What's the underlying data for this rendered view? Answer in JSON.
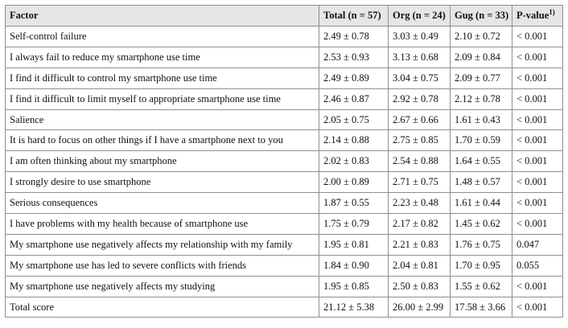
{
  "header": {
    "factor": "Factor",
    "total": "Total (n = 57)",
    "org": "Org (n = 24)",
    "gug": "Gug (n = 33)",
    "pvalue": "P-value",
    "pvalue_sup": "1)"
  },
  "rows": [
    {
      "factor": "Self-control failure",
      "total": "2.49 ± 0.78",
      "org": "3.03 ± 0.49",
      "gug": "2.10 ± 0.72",
      "p": "< 0.001"
    },
    {
      "factor": "I always fail to reduce my smartphone use time",
      "total": "2.53 ± 0.93",
      "org": "3.13 ± 0.68",
      "gug": "2.09 ± 0.84",
      "p": "< 0.001"
    },
    {
      "factor": "I find it difficult to control my smartphone use time",
      "total": "2.49 ± 0.89",
      "org": "3.04 ± 0.75",
      "gug": "2.09 ± 0.77",
      "p": "< 0.001"
    },
    {
      "factor": "I find it difficult to limit myself to appropriate smartphone use time",
      "total": "2.46 ± 0.87",
      "org": "2.92 ± 0.78",
      "gug": "2.12 ± 0.78",
      "p": "< 0.001"
    },
    {
      "factor": "Salience",
      "total": "2.05 ± 0.75",
      "org": "2.67 ± 0.66",
      "gug": "1.61 ± 0.43",
      "p": "< 0.001"
    },
    {
      "factor": "It is hard to focus on other things if I have a smartphone next to you",
      "total": "2.14 ± 0.88",
      "org": "2.75 ± 0.85",
      "gug": "1.70 ± 0.59",
      "p": "< 0.001"
    },
    {
      "factor": "I am often thinking about my smartphone",
      "total": "2.02 ± 0.83",
      "org": "2.54 ± 0.88",
      "gug": "1.64 ± 0.55",
      "p": "< 0.001"
    },
    {
      "factor": "I strongly desire to use smartphone",
      "total": "2.00 ± 0.89",
      "org": "2.71 ± 0.75",
      "gug": "1.48 ± 0.57",
      "p": "< 0.001"
    },
    {
      "factor": "Serious consequences",
      "total": "1.87 ± 0.55",
      "org": "2.23 ± 0.48",
      "gug": "1.61 ± 0.44",
      "p": "< 0.001"
    },
    {
      "factor": "I have problems with my health because of smartphone use",
      "total": "1.75 ± 0.79",
      "org": "2.17 ± 0.82",
      "gug": "1.45 ± 0.62",
      "p": "< 0.001"
    },
    {
      "factor": "My smartphone use negatively affects my relationship with my family",
      "total": "1.95 ± 0.81",
      "org": "2.21 ± 0.83",
      "gug": "1.76 ± 0.75",
      "p": "0.047"
    },
    {
      "factor": "My smartphone use has led to severe conflicts with friends",
      "total": "1.84 ± 0.90",
      "org": "2.04 ± 0.81",
      "gug": "1.70 ± 0.95",
      "p": "0.055"
    },
    {
      "factor": "My smartphone use negatively affects my studying",
      "total": "1.95 ± 0.85",
      "org": "2.50 ± 0.83",
      "gug": "1.55 ± 0.62",
      "p": "< 0.001"
    },
    {
      "factor": "Total score",
      "total": "21.12 ± 5.38",
      "org": "26.00 ± 2.99",
      "gug": "17.58 ± 3.66",
      "p": "< 0.001"
    }
  ]
}
